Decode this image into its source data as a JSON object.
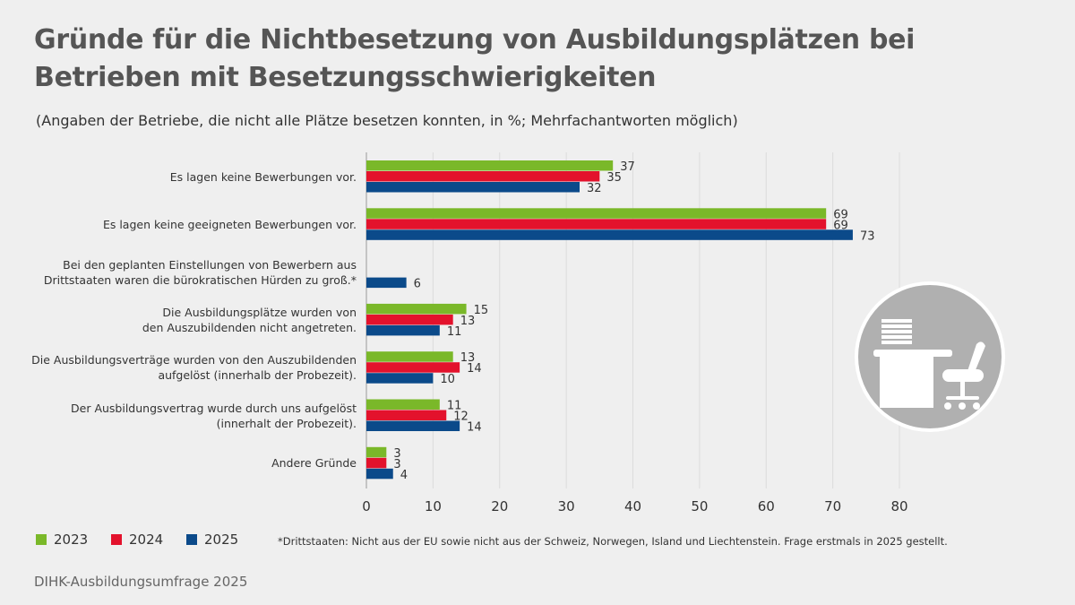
{
  "title": "Gründe für die Nichtbesetzung von Ausbildungsplätzen bei Betrieben mit Besetzungsschwierigkeiten",
  "subtitle": "(Angaben der Betriebe, die nicht alle Plätze besetzen konnten, in %; Mehrfachantworten möglich)",
  "footnote": "*Drittstaaten: Nicht aus der EU sowie nicht aus der Schweiz, Norwegen, Island und Liechtenstein. Frage erstmals in 2025 gestellt.",
  "source": "DIHK-Ausbildungsumfrage 2025",
  "chart_data": {
    "type": "bar",
    "orientation": "horizontal",
    "categories": [
      [
        "Es lagen keine Bewerbungen vor."
      ],
      [
        "Es lagen keine geeigneten Bewerbungen vor."
      ],
      [
        "Bei den geplanten Einstellungen von Bewerbern aus",
        "Drittstaaten waren die bürokratischen Hürden zu groß.*"
      ],
      [
        "Die Ausbildungsplätze wurden von",
        "den Auszubildenden nicht angetreten."
      ],
      [
        "Die Ausbildungsverträge wurden von den Auszubildenden",
        "aufgelöst (innerhalb der Probezeit)."
      ],
      [
        "Der Ausbildungsvertrag wurde durch uns aufgelöst",
        "(innerhalt der Probezeit)."
      ],
      [
        "Andere Gründe"
      ]
    ],
    "series": [
      {
        "name": "2023",
        "color": "#7ab829",
        "values": [
          37,
          69,
          null,
          15,
          13,
          11,
          3
        ]
      },
      {
        "name": "2024",
        "color": "#e3122c",
        "values": [
          35,
          69,
          null,
          13,
          14,
          12,
          3
        ]
      },
      {
        "name": "2025",
        "color": "#0b4a8a",
        "values": [
          32,
          73,
          6,
          11,
          10,
          14,
          4
        ]
      }
    ],
    "xlim": [
      0,
      80
    ],
    "xticks": [
      0,
      10,
      20,
      30,
      40,
      50,
      60,
      70,
      80
    ],
    "grid": true,
    "legend": "bottom-left"
  }
}
